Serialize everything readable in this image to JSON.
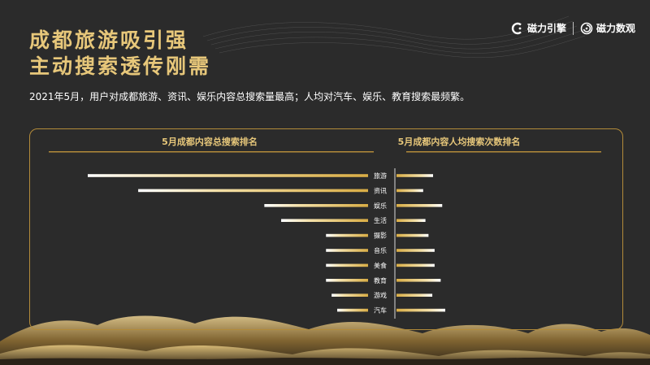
{
  "header": {
    "title_line1": "成都旅游吸引强",
    "title_line2": "主动搜索透传刚需",
    "subtitle": "2021年5月，用户对成都旅游、资讯、娱乐内容总搜索量最高；人均对汽车、娱乐、教育搜索最频繁。",
    "brand1": "磁力引擎",
    "brand2": "磁力数观"
  },
  "colors": {
    "accent": "#e7c77a",
    "border": "#b38b3a",
    "background": "#2b2b2b"
  },
  "icons": {
    "brand1": "magnet-c-icon",
    "brand2": "spiral-icon"
  },
  "chart_data": {
    "type": "bar",
    "orientation": "horizontal-butterfly",
    "categories": [
      "旅游",
      "资讯",
      "娱乐",
      "生活",
      "摄影",
      "音乐",
      "美食",
      "教育",
      "游戏",
      "汽车"
    ],
    "series": [
      {
        "name": "5月成都内容总搜索排名",
        "values": [
          100,
          82,
          37,
          31,
          15,
          15,
          15,
          15,
          13,
          11
        ]
      },
      {
        "name": "5月成都内容人均搜索次数排名",
        "values": [
          48,
          35,
          60,
          38,
          42,
          50,
          50,
          58,
          47,
          64
        ]
      }
    ],
    "note": "relative bar lengths, no axis values printed"
  }
}
